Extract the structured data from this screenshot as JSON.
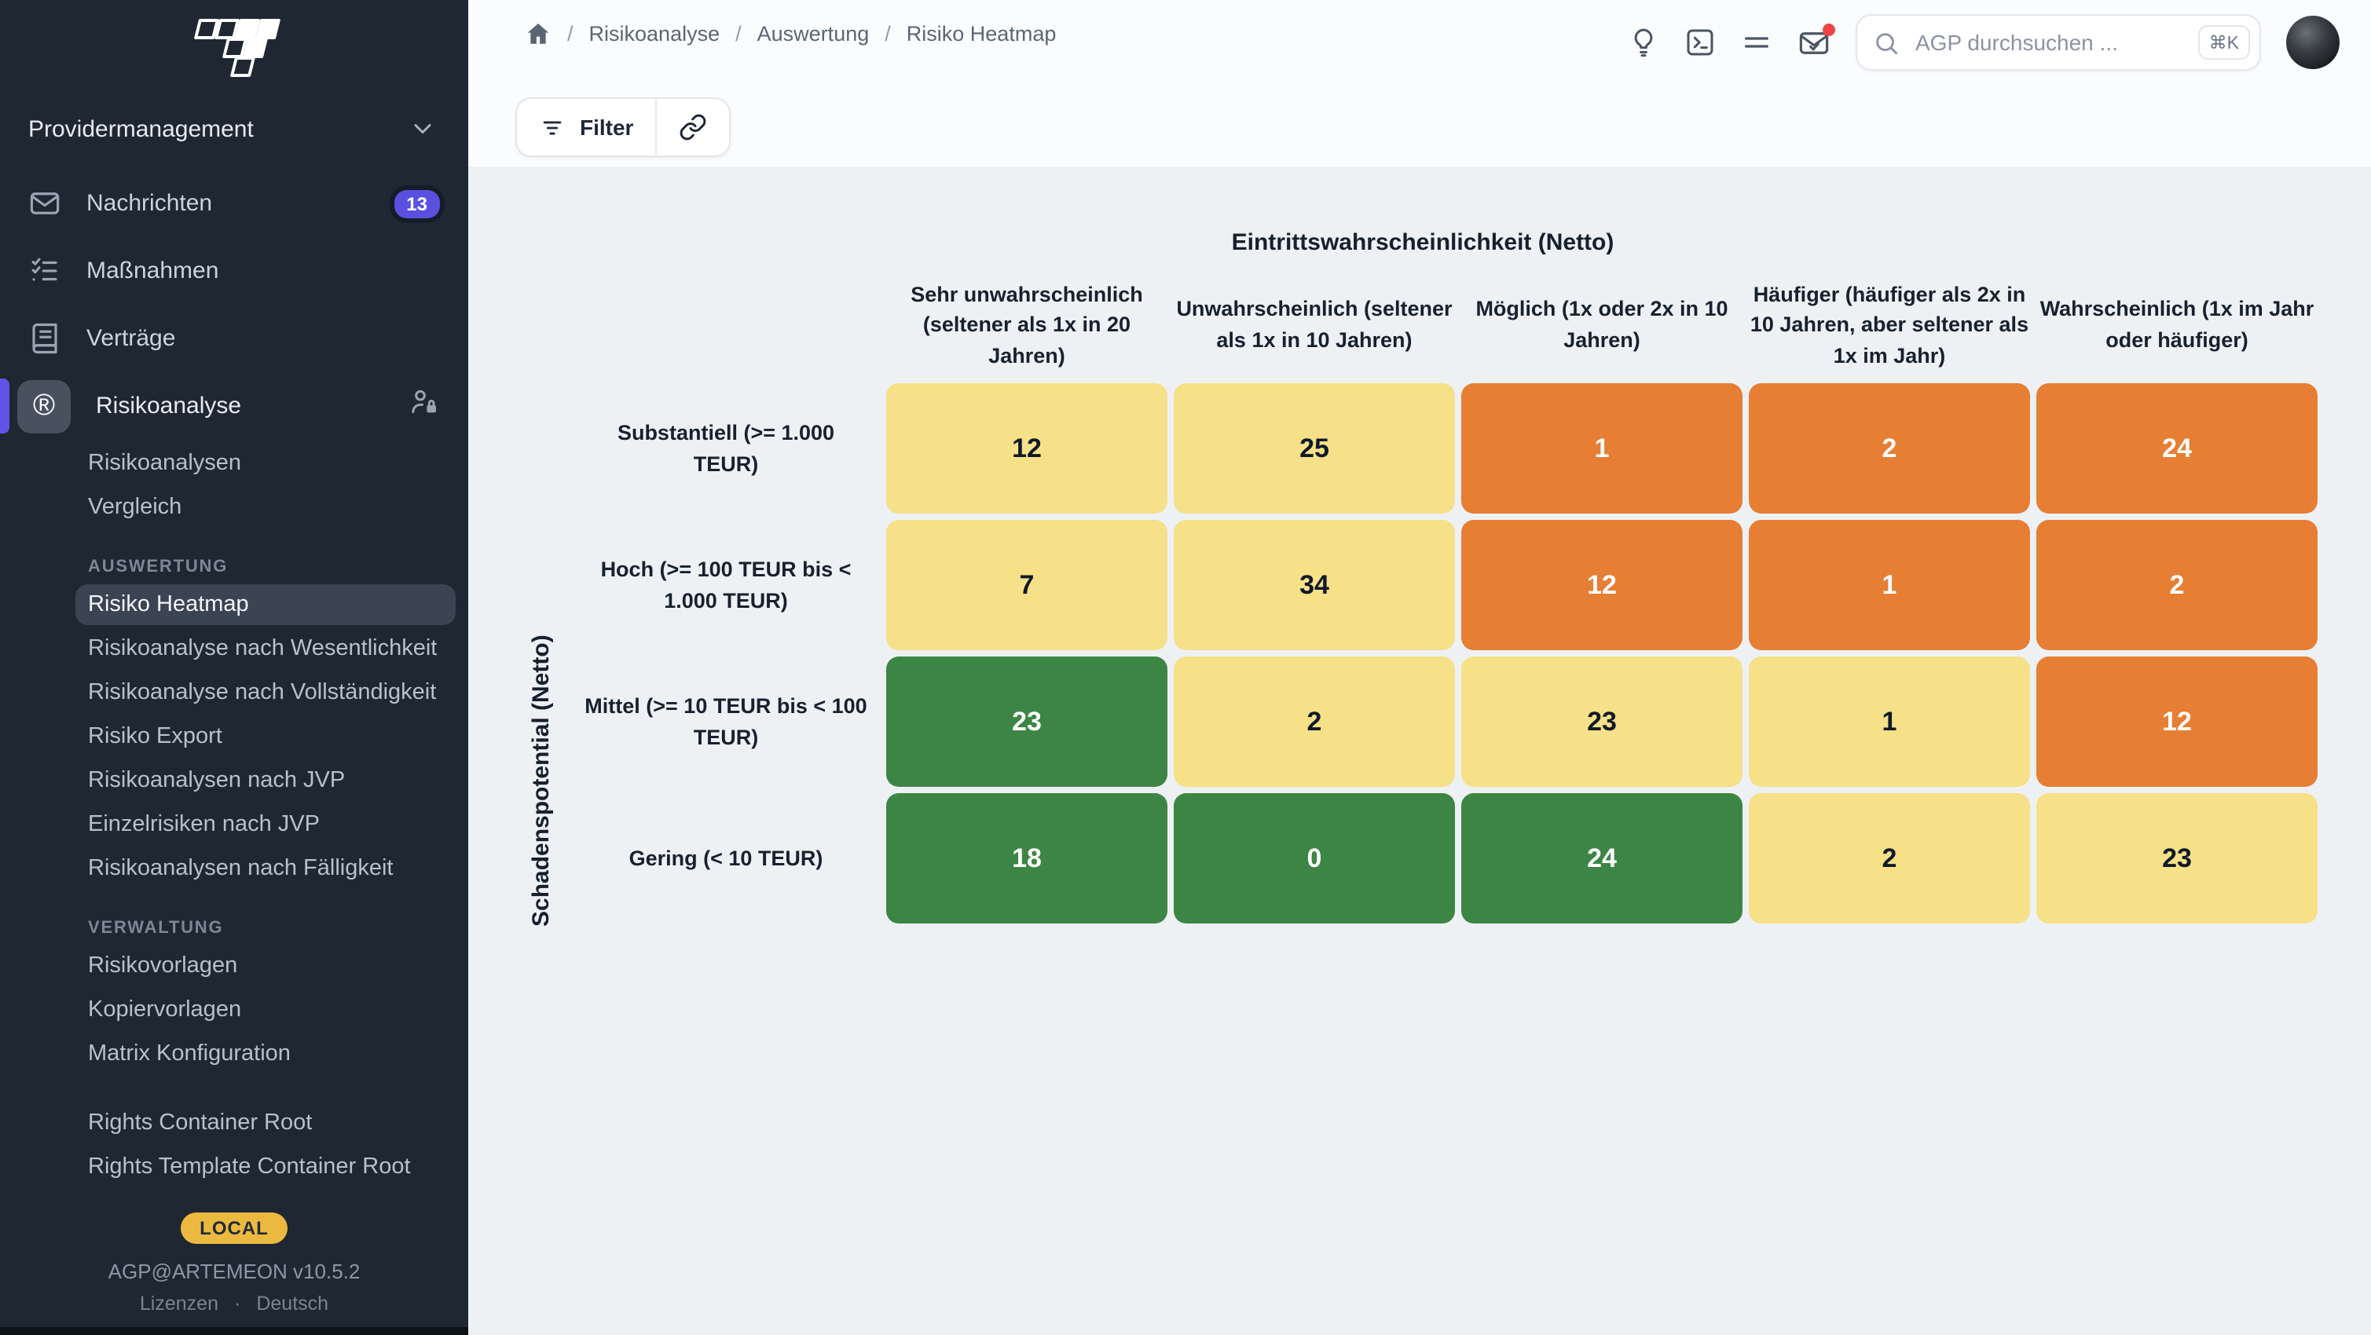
{
  "sidebar": {
    "workspace_label": "Providermanagement",
    "items": [
      {
        "label": "Nachrichten",
        "icon": "mail-icon",
        "badge": "13"
      },
      {
        "label": "Maßnahmen",
        "icon": "checklist-icon"
      },
      {
        "label": "Verträge",
        "icon": "book-icon"
      },
      {
        "label": "Risikoanalyse",
        "icon": "registered-icon",
        "icon_glyph": "®",
        "trailing_icon": "user-lock-icon",
        "active": true
      }
    ],
    "risikoanalyse_children": [
      "Risikoanalysen",
      "Vergleich"
    ],
    "sections": [
      {
        "title": "AUSWERTUNG",
        "items": [
          {
            "label": "Risiko Heatmap",
            "active": true
          },
          {
            "label": "Risikoanalyse nach Wesentlichkeit"
          },
          {
            "label": "Risikoanalyse nach Vollständigkeit"
          },
          {
            "label": "Risiko Export"
          },
          {
            "label": "Risikoanalysen nach JVP"
          },
          {
            "label": "Einzelrisiken nach JVP"
          },
          {
            "label": "Risikoanalysen nach Fälligkeit"
          }
        ]
      },
      {
        "title": "VERWALTUNG",
        "items": [
          {
            "label": "Risikovorlagen"
          },
          {
            "label": "Kopiervorlagen"
          },
          {
            "label": "Matrix Konfiguration"
          }
        ]
      }
    ],
    "rights_links": [
      "Rights Container Root",
      "Rights Template Container Root"
    ],
    "env_badge": "LOCAL",
    "version": "AGP@ARTEMEON v10.5.2",
    "bottom_links": [
      "Lizenzen",
      "Deutsch"
    ],
    "bottom_separator": "·"
  },
  "topbar": {
    "breadcrumb": [
      "Risikoanalyse",
      "Auswertung",
      "Risiko Heatmap"
    ],
    "breadcrumb_separator": "/",
    "search": {
      "placeholder": "AGP durchsuchen ...",
      "shortcut": "⌘K"
    }
  },
  "toolbar": {
    "filter_label": "Filter"
  },
  "chart_data": {
    "type": "heatmap",
    "x_axis_label": "Eintrittswahrscheinlichkeit (Netto)",
    "y_axis_label": "Schadenspotential (Netto)",
    "columns": [
      "Sehr unwahrscheinlich (seltener als 1x in 20 Jahren)",
      "Unwahrscheinlich (seltener als 1x in 10 Jahren)",
      "Möglich (1x oder 2x in 10 Jahren)",
      "Häufiger (häufiger als 2x in 10 Jahren, aber seltener als 1x im Jahr)",
      "Wahrscheinlich (1x im Jahr oder häufiger)"
    ],
    "rows": [
      "Substantiell (>= 1.000 TEUR)",
      "Hoch (>= 100 TEUR bis < 1.000 TEUR)",
      "Mittel (>= 10 TEUR bis < 100 TEUR)",
      "Gering (< 10 TEUR)"
    ],
    "values": [
      [
        12,
        25,
        1,
        2,
        24
      ],
      [
        7,
        34,
        12,
        1,
        2
      ],
      [
        23,
        2,
        23,
        1,
        12
      ],
      [
        18,
        0,
        24,
        2,
        23
      ]
    ],
    "cell_colors": [
      [
        "yellow",
        "yellow",
        "orange",
        "orange",
        "orange"
      ],
      [
        "yellow",
        "yellow",
        "orange",
        "orange",
        "orange"
      ],
      [
        "green",
        "yellow",
        "yellow",
        "yellow",
        "orange"
      ],
      [
        "green",
        "green",
        "green",
        "yellow",
        "yellow"
      ]
    ],
    "palette": {
      "yellow": "#f6e088",
      "orange": "#e67e33",
      "green": "#3d8544"
    },
    "text_on": {
      "yellow": "#10192a",
      "orange": "#ffffff",
      "green": "#ffffff"
    }
  }
}
